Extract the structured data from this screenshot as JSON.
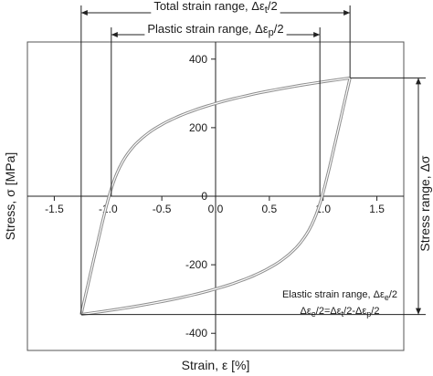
{
  "chart_data": {
    "type": "line",
    "title": "",
    "xlabel": "Strain, ε [%]",
    "ylabel": "Stress, σ [MPa]",
    "right_label": "Stress range, Δσ",
    "xlim": [
      -1.75,
      1.75
    ],
    "ylim": [
      -450,
      450
    ],
    "x_ticks": [
      -1.5,
      -1.0,
      -0.5,
      0,
      0.5,
      1.0,
      1.5
    ],
    "x_tick_labels": [
      "-1.5",
      "-1.0",
      "-0.5",
      "0.0",
      "0.5",
      "1.0",
      "1.5"
    ],
    "y_ticks": [
      -400,
      -200,
      0,
      200,
      400
    ],
    "y_tick_labels": [
      "-400",
      "-200",
      "0",
      "200",
      "400"
    ],
    "grid": false,
    "legend": "none",
    "series_color": "#8c8c8c",
    "loop": {
      "strain_amplitude": 1.25,
      "stress_amplitude": 345,
      "plastic_zero_crossing": 0.97,
      "zero_strain_stress": 315
    },
    "annotations": {
      "total_label": "Total strain range, Δε",
      "total_sub": "t",
      "total_suffix": "/2",
      "plastic_label": "Plastic strain range, Δε",
      "plastic_sub": "p",
      "plastic_suffix": "/2",
      "elastic_label": "Elastic strain range, Δε",
      "elastic_sub": "e",
      "elastic_suffix": "/2",
      "elastic_eq_a": "Δε",
      "elastic_eq_sub1": "e",
      "elastic_eq_b": "/2=Δε",
      "elastic_eq_sub2": "t",
      "elastic_eq_c": "/2-Δε",
      "elastic_eq_sub3": "p",
      "elastic_eq_d": "/2"
    }
  }
}
